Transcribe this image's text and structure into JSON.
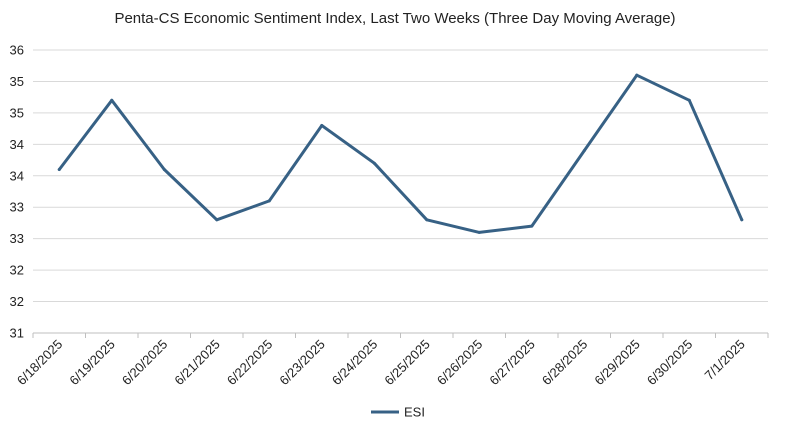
{
  "chart_data": {
    "type": "line",
    "title": "Penta-CS Economic Sentiment Index, Last Two Weeks (Three Day Moving Average)",
    "xlabel": "",
    "ylabel": "",
    "categories": [
      "6/18/2025",
      "6/19/2025",
      "6/20/2025",
      "6/21/2025",
      "6/22/2025",
      "6/23/2025",
      "6/24/2025",
      "6/25/2025",
      "6/26/2025",
      "6/27/2025",
      "6/28/2025",
      "6/29/2025",
      "6/30/2025",
      "7/1/2025"
    ],
    "ytick_labels": [
      "31",
      "32",
      "32",
      "33",
      "33",
      "34",
      "34",
      "35",
      "35",
      "36"
    ],
    "ylim": [
      31,
      35.5
    ],
    "grid": true,
    "legend_position": "bottom",
    "series": [
      {
        "name": "ESI",
        "color": "#376185",
        "values": [
          33.6,
          34.7,
          33.6,
          32.8,
          33.1,
          34.3,
          33.7,
          32.8,
          32.6,
          32.7,
          33.9,
          35.1,
          34.7,
          32.8
        ]
      }
    ]
  }
}
